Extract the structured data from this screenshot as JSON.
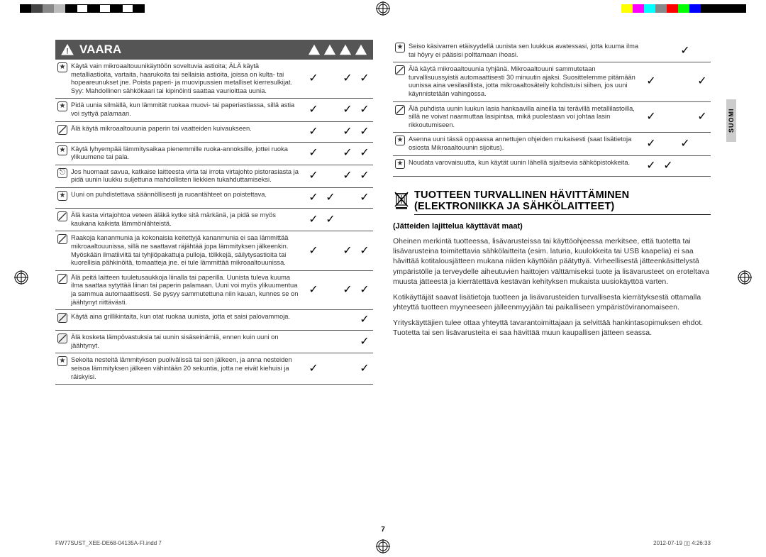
{
  "colorbar_left": [
    "#000",
    "#444",
    "#888",
    "#bbb",
    "#000",
    "#fff",
    "#000",
    "#fff",
    "#000",
    "#fff",
    "#000"
  ],
  "colorbar_right": [
    "#ff0",
    "#f0f",
    "#0ff",
    "#888",
    "#f00",
    "#0f0",
    "#00f",
    "#000",
    "#000",
    "#000",
    "#000"
  ],
  "header": {
    "title": "VAARA"
  },
  "left_rows": [
    {
      "icon": "star",
      "text": "Käytä vain mikroaaltouunikäyttöön soveltuvia astioita; ÄLÄ käytä metalliastioita, vartaita, haarukoita tai sellaisia astioita, joissa on kulta- tai hopeareunukset jne.\nPoista paperi- ja muovipussien metalliset kierresulkijat.\nSyy: Mahdollinen sähkökaari tai kipinöinti saattaa vaurioittaa uunia.",
      "c": [
        true,
        false,
        true,
        true
      ]
    },
    {
      "icon": "star",
      "text": "Pidä uunia silmällä, kun lämmität ruokaa muovi- tai paperiastiassa, sillä astia voi syttyä palamaan.",
      "c": [
        true,
        false,
        true,
        true
      ]
    },
    {
      "icon": "slash",
      "text": "Älä käytä mikroaaltouunia paperin tai vaatteiden kuivaukseen.",
      "c": [
        true,
        false,
        true,
        true
      ]
    },
    {
      "icon": "star",
      "text": "Käytä lyhyempää lämmitysaikaa pienemmille ruoka-annoksille, jottei ruoka ylikuumene tai pala.",
      "c": [
        true,
        false,
        true,
        true
      ]
    },
    {
      "icon": "plug",
      "text": "Jos huomaat savua, katkaise laitteesta virta tai irrota virtajohto pistorasiasta ja pidä uunin luukku suljettuna mahdollisten liekkien tukahduttamiseksi.",
      "c": [
        true,
        false,
        true,
        true
      ]
    },
    {
      "icon": "star",
      "text": "Uuni on puhdistettava säännöllisesti ja ruoantähteet on poistettava.",
      "c": [
        true,
        true,
        false,
        true
      ]
    },
    {
      "icon": "slash",
      "text": "Älä kasta virtajohtoa veteen äläkä kytke sitä märkänä, ja pidä se myös kaukana kaikista lämmönlähteistä.",
      "c": [
        true,
        true,
        false,
        false
      ]
    },
    {
      "icon": "slash",
      "text": "Raakoja kananmunia ja kokonaisia keitettyjä kananmunia ei saa lämmittää mikroaaltouunissa, sillä ne saattavat räjähtää jopa lämmityksen jälkeenkin. Myöskään ilmatiiviitä tai tyhjiöpakattuja pulloja, tölkkejä, säilytysastioita tai kuorellisia pähkinöitä, tomaatteja jne. ei tule lämmittää mikroaaltouunissa.",
      "c": [
        true,
        false,
        true,
        true
      ]
    },
    {
      "icon": "slash",
      "text": "Älä peitä laitteen tuuletusaukkoja liinalla tai paperilla. Uunista tuleva kuuma ilma saattaa sytyttää liinan tai paperin palamaan. Uuni voi myös ylikuumentua ja sammua automaattisesti. Se pysyy sammutettuna niin kauan, kunnes se on jäähtynyt riittävästi.",
      "c": [
        true,
        false,
        true,
        true
      ]
    },
    {
      "icon": "slash-box",
      "text": "Käytä aina grillikintaita, kun otat ruokaa uunista, jotta et saisi palovammoja.",
      "c": [
        false,
        false,
        false,
        true
      ]
    },
    {
      "icon": "slash-box",
      "text": "Älä kosketa lämpövastuksia tai uunin sisäseinämiä, ennen kuin uuni on jäähtynyt.",
      "c": [
        false,
        false,
        false,
        true
      ]
    },
    {
      "icon": "star",
      "text": "Sekoita nesteitä lämmityksen puolivälissä tai sen jälkeen, ja anna nesteiden seisoa lämmityksen jälkeen vähintään 20 sekuntia, jotta ne eivät kiehuisi ja räiskyisi.",
      "c": [
        true,
        false,
        false,
        true
      ]
    }
  ],
  "right_rows": [
    {
      "icon": "star",
      "text": "Seiso käsivarren etäisyydellä uunista sen luukkua avatessasi, jotta kuuma ilma tai höyry ei pääsisi polttamaan ihoasi.",
      "c": [
        false,
        false,
        true,
        false
      ]
    },
    {
      "icon": "slash",
      "text": "Älä käytä mikroaaltouunia tyhjänä. Mikroaaltouuni sammutetaan turvallisuussyistä automaattisesti 30 minuutin ajaksi. Suosittelemme pitämään uunissa aina vesilasillista, jotta mikroaaltosäteily kohdistuisi siihen, jos uuni käynnistetään vahingossa.",
      "c": [
        true,
        false,
        false,
        true
      ]
    },
    {
      "icon": "slash",
      "text": "Älä puhdista uunin luukun lasia hankaavilla aineilla tai terävillä metallilastoilla, sillä ne voivat naarmuttaa lasipintaa, mikä puolestaan voi johtaa lasin rikkoutumiseen.",
      "c": [
        true,
        false,
        false,
        true
      ]
    },
    {
      "icon": "star",
      "text": "Asenna uuni tässä oppaassa annettujen ohjeiden mukaisesti (saat lisätietoja osiosta Mikroaaltouunin sijoitus).",
      "c": [
        true,
        false,
        true,
        false
      ]
    },
    {
      "icon": "star",
      "text": "Noudata varovaisuutta, kun käytät uunin lähellä sijaitsevia sähköpistokkeita.",
      "c": [
        true,
        true,
        false,
        false
      ]
    }
  ],
  "section": {
    "title_l1": "TUOTTEEN TURVALLINEN HÄVITTÄMINEN",
    "title_l2": "(ELEKTRONIIKKA JA SÄHKÖLAITTEET)",
    "sub": "(Jätteiden lajittelua käyttävät maat)",
    "p1": "Oheinen merkintä tuotteessa, lisävarusteissa tai käyttöohjeessa merkitsee, että tuotetta tai lisävarusteina toimitettavia sähkölaitteita (esim. laturia, kuulokkeita tai USB kaapelia) ei saa hävittää kotitalousjätteen mukana niiden käyttöiän päätyttyä. Virheellisestä jätteenkäsittelystä ympäristölle ja terveydelle aiheutuvien haittojen välttämiseksi tuote ja lisävarusteet on eroteltava muusta jätteestä ja kierrätettävä kestävän kehityksen mukaista uusiokäyttöä varten.",
    "p2": "Kotikäyttäjät saavat lisätietoja tuotteen ja lisävarusteiden turvallisesta kierrätyksestä ottamalla yhteyttä tuotteen myyneeseen jälleenmyyjään tai paikalliseen ympäristöviranomaiseen.",
    "p3": "Yrityskäyttäjien tulee ottaa yhteyttä tavarantoimittajaan ja selvittää hankintasopimuksen ehdot. Tuotetta tai sen lisävarusteita ei saa hävittää muun kaupallisen jätteen seassa."
  },
  "side_tab": "SUOMI",
  "page_number": "7",
  "footer_left": "FW77SUST_XEE-DE68-04135A-FI.indd   7",
  "footer_right": "2012-07-19   ▯▯ 4:26:33"
}
